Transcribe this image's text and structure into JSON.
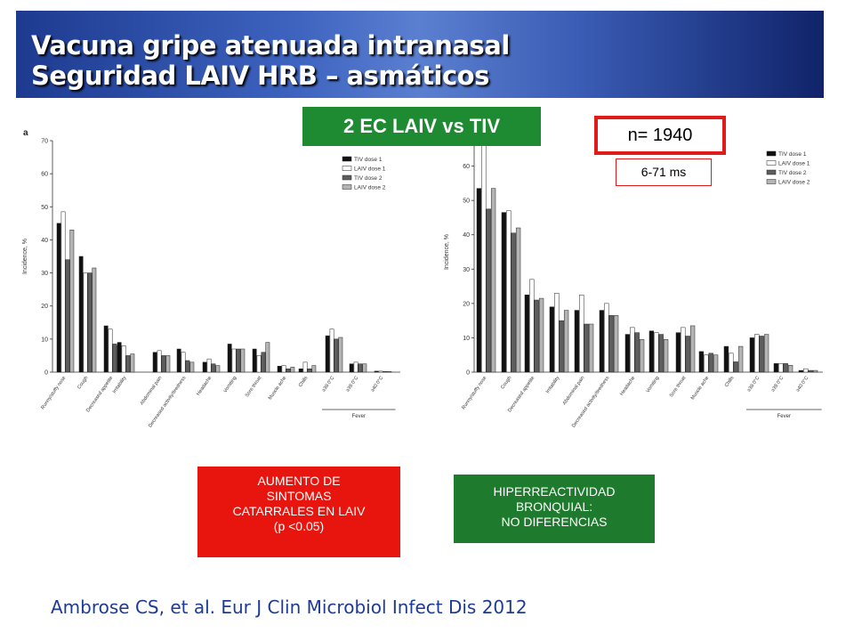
{
  "header": {
    "title_line1": "Vacuna gripe atenuada intranasal",
    "title_line2": "Seguridad LAIV HRB – asmáticos"
  },
  "labels": {
    "ec_box": "2 EC LAIV vs TIV",
    "n_box": "n= 1940",
    "age_box": "6-71 ms",
    "left_note": [
      "AUMENTO DE",
      "SINTOMAS",
      "CATARRALES EN LAIV",
      "(p <0.05)"
    ],
    "right_note": [
      "HIPERREACTIVIDAD",
      "BRONQUIAL:",
      "NO DIFERENCIAS"
    ],
    "reference": "Ambrose CS, et al. Eur J Clin Microbiol Infect Dis 2012"
  },
  "colors": {
    "tiv1": "#111111",
    "laiv1": "#ffffff",
    "tiv2": "#5e5e5e",
    "laiv2": "#b4b4b4",
    "accent_red": "#e21a1a",
    "accent_green": "#1e8a32"
  },
  "chart_data": [
    {
      "type": "bar",
      "panel_label": "a",
      "ylabel": "Incidence, %",
      "ylim": [
        0,
        70
      ],
      "yticks": [
        0,
        10,
        20,
        30,
        40,
        50,
        60,
        70
      ],
      "legend_position": "top-right",
      "group_label": "Fever",
      "categories": [
        "Runny/stuffy nose",
        "Cough",
        "Decreased appetite",
        "Irritability",
        "Abdominal pain",
        "Decreased activity/tiredness",
        "Headache",
        "Vomiting",
        "Sore throat",
        "Muscle ache",
        "Chills",
        "≥38.0°C",
        "≥39.0°C",
        "≥40.0°C"
      ],
      "series": [
        {
          "name": "TIV dose 1",
          "values": [
            45,
            35,
            14,
            9,
            6,
            7,
            3,
            8.5,
            7,
            1.8,
            1,
            11,
            2.5,
            0.3
          ]
        },
        {
          "name": "LAIV dose 1",
          "values": [
            48.5,
            30,
            13,
            8,
            6.5,
            6,
            4,
            7,
            5,
            2,
            3,
            13,
            3,
            0.3
          ]
        },
        {
          "name": "TIV dose 2",
          "values": [
            34,
            30,
            8.5,
            5,
            5,
            3.5,
            2.5,
            7,
            6,
            1,
            1,
            10,
            2.5,
            0.2
          ]
        },
        {
          "name": "LAIV dose 2",
          "values": [
            43,
            31.5,
            8,
            5.5,
            5,
            3,
            2,
            7,
            9,
            1.5,
            2,
            10.5,
            2.5,
            0.2
          ]
        }
      ]
    },
    {
      "type": "bar",
      "panel_label": "",
      "ylabel": "Incidence, %",
      "ylim": [
        0,
        70
      ],
      "yticks": [
        0,
        10,
        20,
        30,
        40,
        50,
        60
      ],
      "legend_position": "top-right",
      "group_label": "Fever",
      "categories": [
        "Runny/stuffy nose",
        "Cough",
        "Decreased appetite",
        "Irritability",
        "Abdominal pain",
        "Decreased activity/tiredness",
        "Headache",
        "Vomiting",
        "Sore throat",
        "Muscle ache",
        "Chills",
        "≥38.0°C",
        "≥39.0°C",
        "≥40.0°C"
      ],
      "series": [
        {
          "name": "TIV dose 1",
          "values": [
            53.5,
            46.5,
            22.5,
            19,
            18,
            18,
            11,
            12,
            11.5,
            6,
            7.5,
            10,
            2.5,
            0.5
          ]
        },
        {
          "name": "LAIV dose 1",
          "values": [
            68,
            47,
            27,
            23,
            22.5,
            20,
            13,
            11.5,
            13,
            5,
            5.5,
            11,
            2.5,
            1
          ]
        },
        {
          "name": "TIV dose 2",
          "values": [
            47.5,
            40.5,
            21,
            15,
            14,
            16.5,
            11.5,
            11,
            10.5,
            5.5,
            3,
            10.5,
            2.5,
            0.5
          ]
        },
        {
          "name": "LAIV dose 2",
          "values": [
            53.5,
            42,
            21.5,
            18,
            14,
            16.5,
            9.5,
            9.5,
            13.5,
            5,
            7.5,
            11,
            2,
            0.5
          ]
        }
      ]
    }
  ]
}
